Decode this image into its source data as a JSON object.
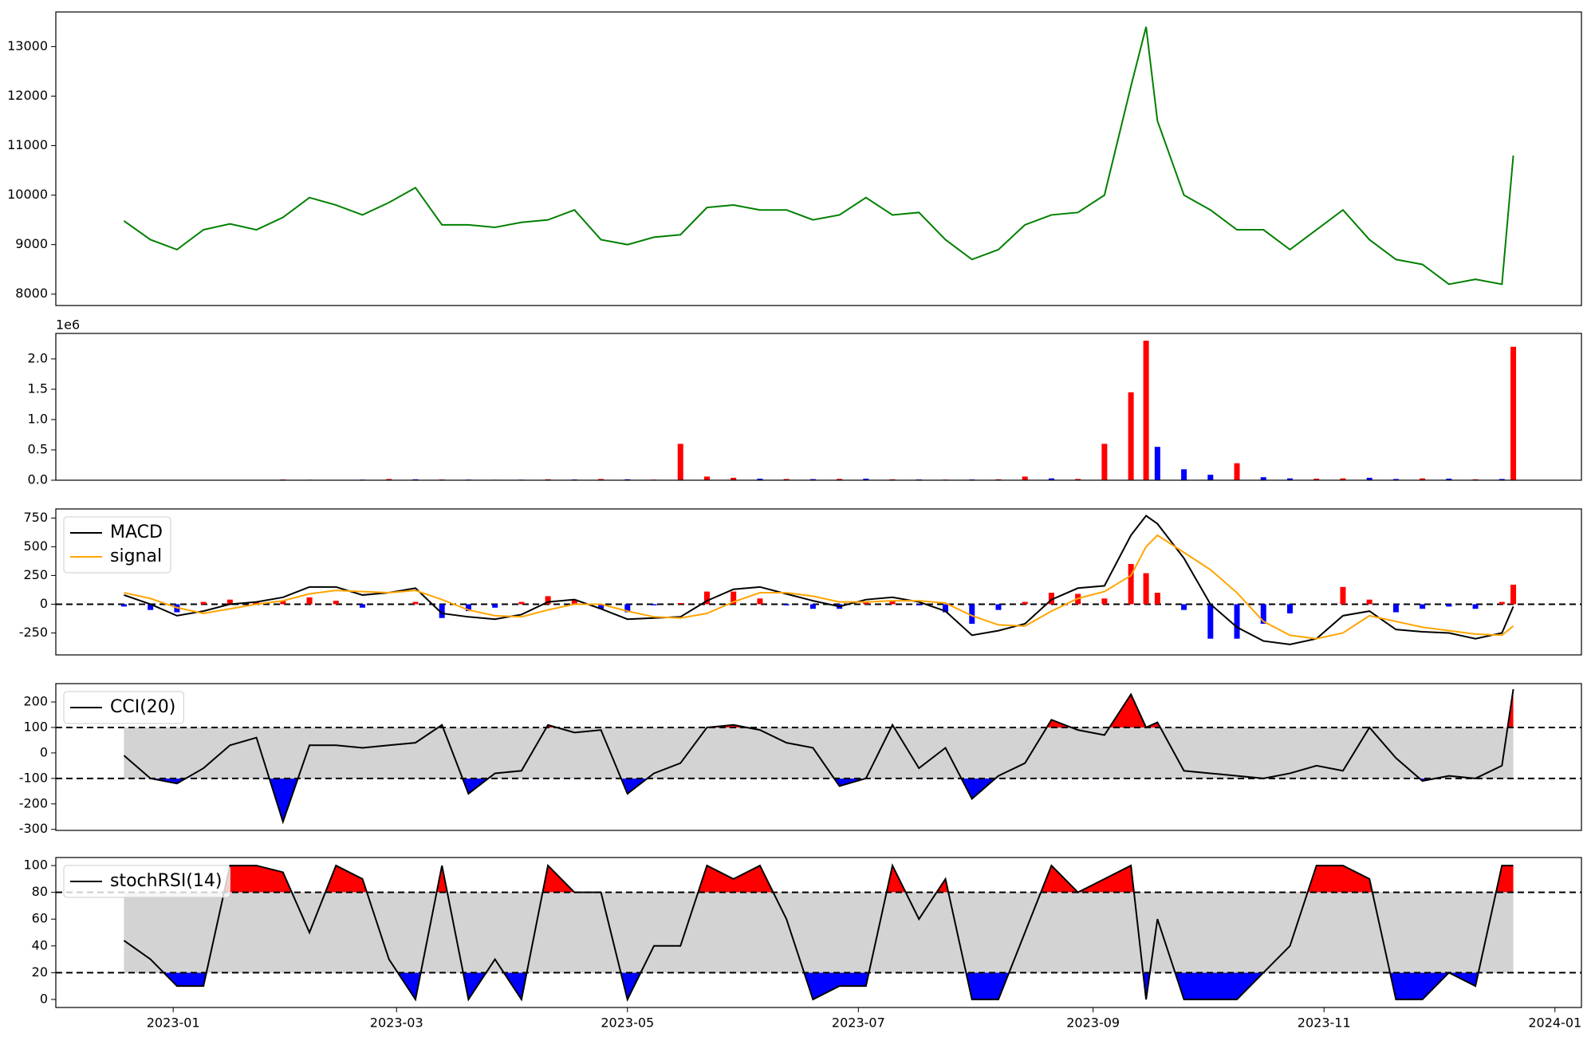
{
  "chart_data": [
    {
      "type": "line",
      "x": [
        "2022-12-19",
        "2022-12-26",
        "2023-01-02",
        "2023-01-09",
        "2023-01-16",
        "2023-01-23",
        "2023-01-30",
        "2023-02-06",
        "2023-02-13",
        "2023-02-20",
        "2023-02-27",
        "2023-03-06",
        "2023-03-13",
        "2023-03-20",
        "2023-03-27",
        "2023-04-03",
        "2023-04-10",
        "2023-04-17",
        "2023-04-24",
        "2023-05-01",
        "2023-05-08",
        "2023-05-15",
        "2023-05-22",
        "2023-05-29",
        "2023-06-05",
        "2023-06-12",
        "2023-06-19",
        "2023-06-26",
        "2023-07-03",
        "2023-07-10",
        "2023-07-17",
        "2023-07-24",
        "2023-07-31",
        "2023-08-07",
        "2023-08-14",
        "2023-08-21",
        "2023-08-28",
        "2023-09-04",
        "2023-09-11",
        "2023-09-15",
        "2023-09-18",
        "2023-09-25",
        "2023-10-02",
        "2023-10-09",
        "2023-10-16",
        "2023-10-23",
        "2023-10-30",
        "2023-11-06",
        "2023-11-13",
        "2023-11-20",
        "2023-11-27",
        "2023-12-04",
        "2023-12-11",
        "2023-12-18",
        "2023-12-21"
      ],
      "series": [
        {
          "color": "green",
          "values": [
            9480,
            9100,
            8900,
            9300,
            9420,
            9300,
            9550,
            9950,
            9800,
            9600,
            9850,
            10150,
            9400,
            9400,
            9350,
            9450,
            9500,
            9700,
            9100,
            9000,
            9150,
            9200,
            9750,
            9800,
            9700,
            9700,
            9500,
            9600,
            9950,
            9600,
            9650,
            9100,
            8700,
            8900,
            9400,
            9600,
            9650,
            10000,
            12200,
            13400,
            11500,
            10000,
            9700,
            9300,
            9300,
            8900,
            9300,
            9700,
            9100,
            8700,
            8600,
            8200,
            8300,
            8200,
            10800
          ]
        }
      ],
      "xlim": [
        "2022-12-01",
        "2024-01-08"
      ],
      "ylim": [
        7770,
        13700
      ],
      "yticks": [
        8000,
        9000,
        10000,
        11000,
        12000,
        13000
      ]
    },
    {
      "type": "bar",
      "x": [
        "2022-12-19",
        "2022-12-26",
        "2023-01-02",
        "2023-01-09",
        "2023-01-16",
        "2023-01-23",
        "2023-01-30",
        "2023-02-06",
        "2023-02-13",
        "2023-02-20",
        "2023-02-27",
        "2023-03-06",
        "2023-03-13",
        "2023-03-20",
        "2023-03-27",
        "2023-04-03",
        "2023-04-10",
        "2023-04-17",
        "2023-04-24",
        "2023-05-01",
        "2023-05-08",
        "2023-05-15",
        "2023-05-22",
        "2023-05-29",
        "2023-06-05",
        "2023-06-12",
        "2023-06-19",
        "2023-06-26",
        "2023-07-03",
        "2023-07-10",
        "2023-07-17",
        "2023-07-24",
        "2023-07-31",
        "2023-08-07",
        "2023-08-14",
        "2023-08-21",
        "2023-08-28",
        "2023-09-04",
        "2023-09-11",
        "2023-09-15",
        "2023-09-18",
        "2023-09-25",
        "2023-10-02",
        "2023-10-09",
        "2023-10-16",
        "2023-10-23",
        "2023-10-30",
        "2023-11-06",
        "2023-11-13",
        "2023-11-20",
        "2023-11-27",
        "2023-12-04",
        "2023-12-11",
        "2023-12-18",
        "2023-12-21"
      ],
      "values": [
        5000,
        4000,
        3000,
        5000,
        4000,
        6000,
        12000,
        8000,
        6000,
        10000,
        20000,
        15000,
        12000,
        10000,
        8000,
        9000,
        15000,
        12000,
        20000,
        15000,
        10000,
        600000,
        60000,
        40000,
        25000,
        20000,
        18000,
        22000,
        25000,
        15000,
        12000,
        10000,
        12000,
        15000,
        60000,
        30000,
        20000,
        600000,
        1450000,
        2300000,
        550000,
        180000,
        90000,
        280000,
        50000,
        30000,
        25000,
        30000,
        40000,
        20000,
        30000,
        25000,
        15000,
        20000,
        2200000
      ],
      "colors": [
        "blue",
        "red",
        "blue",
        "red",
        "blue",
        "red",
        "red",
        "blue",
        "red",
        "blue",
        "red",
        "blue",
        "red",
        "blue",
        "red",
        "blue",
        "red",
        "blue",
        "red",
        "blue",
        "red",
        "red",
        "red",
        "red",
        "blue",
        "red",
        "blue",
        "red",
        "blue",
        "red",
        "blue",
        "red",
        "blue",
        "red",
        "red",
        "blue",
        "red",
        "red",
        "red",
        "red",
        "blue",
        "blue",
        "blue",
        "red",
        "blue",
        "blue",
        "red",
        "red",
        "blue",
        "blue",
        "red",
        "blue",
        "red",
        "blue",
        "red"
      ],
      "offset_label": "1e6",
      "xlim": [
        "2022-12-01",
        "2024-01-08"
      ],
      "ylim": [
        0,
        2420000
      ],
      "yticks": [
        {
          "value": 0,
          "label": "0.0"
        },
        {
          "value": 500000,
          "label": "0.5"
        },
        {
          "value": 1000000,
          "label": "1.0"
        },
        {
          "value": 1500000,
          "label": "1.5"
        },
        {
          "value": 2000000,
          "label": "2.0"
        }
      ]
    },
    {
      "type": "macd",
      "x": [
        "2022-12-19",
        "2022-12-26",
        "2023-01-02",
        "2023-01-09",
        "2023-01-16",
        "2023-01-23",
        "2023-01-30",
        "2023-02-06",
        "2023-02-13",
        "2023-02-20",
        "2023-02-27",
        "2023-03-06",
        "2023-03-13",
        "2023-03-20",
        "2023-03-27",
        "2023-04-03",
        "2023-04-10",
        "2023-04-17",
        "2023-04-24",
        "2023-05-01",
        "2023-05-08",
        "2023-05-15",
        "2023-05-22",
        "2023-05-29",
        "2023-06-05",
        "2023-06-12",
        "2023-06-19",
        "2023-06-26",
        "2023-07-03",
        "2023-07-10",
        "2023-07-17",
        "2023-07-24",
        "2023-07-31",
        "2023-08-07",
        "2023-08-14",
        "2023-08-21",
        "2023-08-28",
        "2023-09-04",
        "2023-09-11",
        "2023-09-15",
        "2023-09-18",
        "2023-09-25",
        "2023-10-02",
        "2023-10-09",
        "2023-10-16",
        "2023-10-23",
        "2023-10-30",
        "2023-11-06",
        "2023-11-13",
        "2023-11-20",
        "2023-11-27",
        "2023-12-04",
        "2023-12-11",
        "2023-12-18",
        "2023-12-21"
      ],
      "series": [
        {
          "kind": "bar",
          "positive_color": "red",
          "negative_color": "blue",
          "values": [
            -20,
            -50,
            -70,
            20,
            40,
            20,
            30,
            60,
            30,
            -30,
            0,
            20,
            -120,
            -60,
            -30,
            20,
            70,
            40,
            -40,
            -70,
            -10,
            10,
            110,
            110,
            50,
            -10,
            -40,
            -40,
            20,
            30,
            -10,
            -70,
            -170,
            -50,
            20,
            100,
            90,
            50,
            350,
            270,
            100,
            -50,
            -300,
            -300,
            -170,
            -80,
            0,
            150,
            40,
            -70,
            -40,
            -20,
            -40,
            20,
            170
          ]
        },
        {
          "name": "MACD",
          "color": "black",
          "values": [
            80,
            0,
            -100,
            -60,
            0,
            20,
            60,
            150,
            150,
            80,
            100,
            140,
            -80,
            -110,
            -130,
            -90,
            20,
            40,
            -40,
            -130,
            -120,
            -110,
            30,
            130,
            150,
            90,
            30,
            -20,
            40,
            60,
            20,
            -60,
            -270,
            -230,
            -170,
            40,
            140,
            160,
            600,
            770,
            700,
            400,
            0,
            -200,
            -320,
            -350,
            -300,
            -100,
            -60,
            -220,
            -240,
            -250,
            -300,
            -250,
            -20
          ]
        },
        {
          "name": "signal",
          "color": "orange",
          "values": [
            100,
            50,
            -30,
            -80,
            -40,
            0,
            30,
            90,
            120,
            110,
            100,
            120,
            40,
            -50,
            -100,
            -110,
            -50,
            0,
            0,
            -60,
            -110,
            -120,
            -80,
            20,
            100,
            100,
            70,
            20,
            20,
            30,
            30,
            10,
            -100,
            -180,
            -190,
            -60,
            50,
            110,
            250,
            500,
            600,
            450,
            300,
            100,
            -150,
            -270,
            -300,
            -250,
            -100,
            -150,
            -200,
            -230,
            -260,
            -270,
            -190
          ]
        }
      ],
      "hlines": [
        0
      ],
      "legend": "upper left",
      "xlim": [
        "2022-12-01",
        "2024-01-08"
      ],
      "ylim": [
        -441,
        829
      ],
      "yticks": [
        -250,
        0,
        250,
        500,
        750
      ]
    },
    {
      "type": "oscillator",
      "x": [
        "2022-12-19",
        "2022-12-26",
        "2023-01-02",
        "2023-01-09",
        "2023-01-16",
        "2023-01-23",
        "2023-01-30",
        "2023-02-06",
        "2023-02-13",
        "2023-02-20",
        "2023-02-27",
        "2023-03-06",
        "2023-03-13",
        "2023-03-20",
        "2023-03-27",
        "2023-04-03",
        "2023-04-10",
        "2023-04-17",
        "2023-04-24",
        "2023-05-01",
        "2023-05-08",
        "2023-05-15",
        "2023-05-22",
        "2023-05-29",
        "2023-06-05",
        "2023-06-12",
        "2023-06-19",
        "2023-06-26",
        "2023-07-03",
        "2023-07-10",
        "2023-07-17",
        "2023-07-24",
        "2023-07-31",
        "2023-08-07",
        "2023-08-14",
        "2023-08-21",
        "2023-08-28",
        "2023-09-04",
        "2023-09-11",
        "2023-09-15",
        "2023-09-18",
        "2023-09-25",
        "2023-10-02",
        "2023-10-09",
        "2023-10-16",
        "2023-10-23",
        "2023-10-30",
        "2023-11-06",
        "2023-11-13",
        "2023-11-20",
        "2023-11-27",
        "2023-12-04",
        "2023-12-11",
        "2023-12-18",
        "2023-12-21"
      ],
      "series": [
        {
          "name": "CCI(20)",
          "color": "black",
          "values": [
            -10,
            -100,
            -120,
            -60,
            30,
            60,
            -270,
            30,
            30,
            20,
            30,
            40,
            110,
            -160,
            -80,
            -70,
            110,
            80,
            90,
            -160,
            -80,
            -40,
            100,
            110,
            90,
            40,
            20,
            -130,
            -100,
            110,
            -60,
            20,
            -180,
            -90,
            -40,
            130,
            90,
            70,
            230,
            100,
            120,
            -70,
            -80,
            -90,
            -100,
            -80,
            -50,
            -70,
            100,
            -20,
            -110,
            -90,
            -100,
            -50,
            250
          ]
        }
      ],
      "hlines": [
        100,
        -100
      ],
      "band_color": "lightgray",
      "upper_color": "red",
      "lower_color": "blue",
      "legend": "upper left",
      "xlim": [
        "2022-12-01",
        "2024-01-08"
      ],
      "ylim": [
        -304,
        272
      ],
      "yticks": [
        -300,
        -200,
        -100,
        0,
        100,
        200
      ]
    },
    {
      "type": "oscillator",
      "x": [
        "2022-12-19",
        "2022-12-26",
        "2023-01-02",
        "2023-01-09",
        "2023-01-16",
        "2023-01-23",
        "2023-01-30",
        "2023-02-06",
        "2023-02-13",
        "2023-02-20",
        "2023-02-27",
        "2023-03-06",
        "2023-03-13",
        "2023-03-20",
        "2023-03-27",
        "2023-04-03",
        "2023-04-10",
        "2023-04-17",
        "2023-04-24",
        "2023-05-01",
        "2023-05-08",
        "2023-05-15",
        "2023-05-22",
        "2023-05-29",
        "2023-06-05",
        "2023-06-12",
        "2023-06-19",
        "2023-06-26",
        "2023-07-03",
        "2023-07-10",
        "2023-07-17",
        "2023-07-24",
        "2023-07-31",
        "2023-08-07",
        "2023-08-14",
        "2023-08-21",
        "2023-08-28",
        "2023-09-04",
        "2023-09-11",
        "2023-09-15",
        "2023-09-18",
        "2023-09-25",
        "2023-10-02",
        "2023-10-09",
        "2023-10-16",
        "2023-10-23",
        "2023-10-30",
        "2023-11-06",
        "2023-11-13",
        "2023-11-20",
        "2023-11-27",
        "2023-12-04",
        "2023-12-11",
        "2023-12-18",
        "2023-12-21"
      ],
      "series": [
        {
          "name": "stochRSI(14)",
          "color": "black",
          "values": [
            44,
            30,
            10,
            10,
            100,
            100,
            95,
            50,
            100,
            90,
            30,
            0,
            100,
            0,
            30,
            0,
            100,
            80,
            80,
            0,
            40,
            40,
            100,
            90,
            100,
            60,
            0,
            10,
            10,
            100,
            60,
            90,
            0,
            0,
            50,
            100,
            80,
            90,
            100,
            0,
            60,
            0,
            0,
            0,
            20,
            40,
            100,
            100,
            90,
            0,
            0,
            20,
            10,
            100,
            100
          ]
        }
      ],
      "hlines": [
        80,
        20
      ],
      "band_color": "lightgray",
      "upper_color": "red",
      "lower_color": "blue",
      "legend": "upper left",
      "xlim": [
        "2022-12-01",
        "2024-01-08"
      ],
      "ylim": [
        -6,
        106
      ],
      "yticks": [
        0,
        20,
        40,
        60,
        80,
        100
      ],
      "xticks": [
        "2023-01",
        "2023-03",
        "2023-05",
        "2023-07",
        "2023-09",
        "2023-11",
        "2024-01"
      ]
    }
  ]
}
